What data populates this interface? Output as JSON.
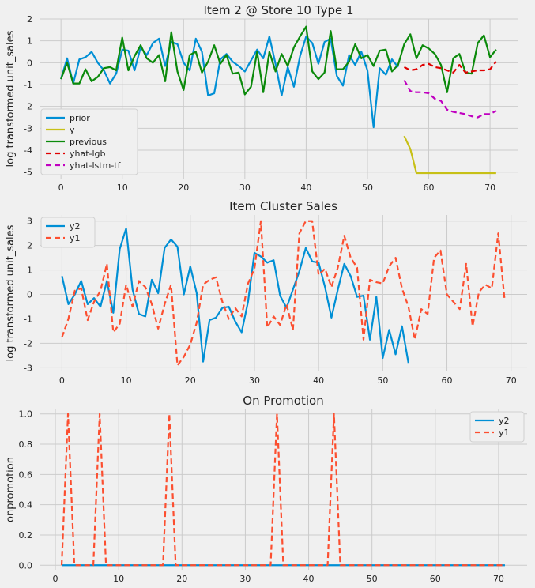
{
  "chart_data": [
    {
      "type": "line",
      "title": "Item 2 @ Store 10 Type 1",
      "xlabel": "",
      "ylabel": "log transformed unit_sales",
      "xlim": [
        -3.5,
        74.5
      ],
      "ylim": [
        -5.3,
        2.0
      ],
      "xticks": [
        0,
        10,
        20,
        30,
        40,
        50,
        60,
        70
      ],
      "yticks": [
        2,
        1,
        0,
        -1,
        -2,
        -3,
        -4,
        -5
      ],
      "grid": true,
      "legend_position": "lower-left",
      "series": [
        {
          "name": "prior",
          "color": "#008fd5",
          "dash": "solid",
          "x": [
            0,
            1,
            2,
            3,
            4,
            5,
            6,
            7,
            8,
            9,
            10,
            11,
            12,
            13,
            14,
            15,
            16,
            17,
            18,
            19,
            20,
            21,
            22,
            23,
            24,
            25,
            26,
            27,
            28,
            29,
            30,
            31,
            32,
            33,
            34,
            35,
            36,
            37,
            38,
            39,
            40,
            41,
            42,
            43,
            44,
            45,
            46,
            47,
            48,
            49,
            50,
            51,
            52,
            53,
            54,
            55
          ],
          "y": [
            -0.75,
            0.2,
            -0.95,
            0.15,
            0.25,
            0.5,
            0.0,
            -0.35,
            -0.95,
            -0.5,
            0.6,
            0.55,
            -0.35,
            0.7,
            0.35,
            0.9,
            1.1,
            -0.15,
            0.95,
            0.85,
            0.0,
            -0.35,
            1.1,
            0.5,
            -1.5,
            -1.4,
            0.15,
            0.4,
            0.05,
            -0.15,
            -0.4,
            0.1,
            0.6,
            0.2,
            1.2,
            -0.05,
            -1.5,
            -0.2,
            -1.1,
            0.3,
            1.2,
            0.9,
            -0.05,
            0.95,
            1.1,
            -0.6,
            -1.05,
            0.35,
            -0.1,
            0.5,
            -0.35,
            -2.95,
            -0.25,
            -0.55,
            0.15,
            -0.2
          ]
        },
        {
          "name": "y",
          "color": "#c7c017",
          "dash": "solid",
          "x": [
            56,
            57,
            58,
            59,
            60,
            61,
            62,
            63,
            64,
            65,
            66,
            67,
            68,
            69,
            70,
            71
          ],
          "y": [
            -3.35,
            -3.95,
            -5.05,
            -5.05,
            -5.05,
            -5.05,
            -5.05,
            -5.05,
            -5.05,
            -5.05,
            -5.05,
            -5.05,
            -5.05,
            -5.05,
            -5.05,
            -5.05
          ]
        },
        {
          "name": "previous",
          "color": "#0b8a0b",
          "dash": "solid",
          "x": [
            0,
            1,
            2,
            3,
            4,
            5,
            6,
            7,
            8,
            9,
            10,
            11,
            12,
            13,
            14,
            15,
            16,
            17,
            18,
            19,
            20,
            21,
            22,
            23,
            24,
            25,
            26,
            27,
            28,
            29,
            30,
            31,
            32,
            33,
            34,
            35,
            36,
            37,
            38,
            39,
            40,
            41,
            42,
            43,
            44,
            45,
            46,
            47,
            48,
            49,
            50,
            51,
            52,
            53,
            54,
            55,
            56,
            57,
            58,
            59,
            60,
            61,
            62,
            63,
            64,
            65,
            66,
            67,
            68,
            69,
            70,
            71
          ],
          "y": [
            -0.75,
            0.0,
            -0.95,
            -0.95,
            -0.3,
            -0.85,
            -0.65,
            -0.25,
            -0.2,
            -0.35,
            1.15,
            -0.35,
            0.3,
            0.8,
            0.2,
            0.0,
            0.35,
            -0.85,
            1.4,
            -0.4,
            -1.25,
            0.35,
            0.5,
            -0.45,
            0.05,
            0.8,
            -0.05,
            0.35,
            -0.5,
            -0.45,
            -1.45,
            -1.1,
            0.5,
            -1.35,
            0.5,
            -0.4,
            0.4,
            -0.15,
            0.7,
            1.2,
            1.65,
            -0.4,
            -0.75,
            -0.45,
            1.45,
            -0.3,
            -0.3,
            0.05,
            0.85,
            0.2,
            0.35,
            -0.15,
            0.55,
            0.6,
            -0.4,
            -0.1,
            0.85,
            1.3,
            0.2,
            0.8,
            0.65,
            0.4,
            -0.1,
            -1.35,
            0.2,
            0.4,
            -0.45,
            -0.5,
            0.9,
            1.25,
            0.25,
            0.6
          ]
        },
        {
          "name": "yhat-lgb",
          "color": "#e00000",
          "dash": "dashed",
          "x": [
            56,
            57,
            58,
            59,
            60,
            61,
            62,
            63,
            64,
            65,
            66,
            67,
            68,
            69,
            70,
            71
          ],
          "y": [
            -0.2,
            -0.35,
            -0.3,
            -0.1,
            -0.05,
            -0.2,
            -0.25,
            -0.35,
            -0.45,
            -0.1,
            -0.45,
            -0.4,
            -0.35,
            -0.35,
            -0.3,
            0.05
          ]
        },
        {
          "name": "yhat-lstm-tf",
          "color": "#c000c0",
          "dash": "dashed",
          "x": [
            56,
            57,
            58,
            59,
            60,
            61,
            62,
            63,
            64,
            65,
            66,
            67,
            68,
            69,
            70,
            71
          ],
          "y": [
            -0.8,
            -1.3,
            -1.35,
            -1.35,
            -1.4,
            -1.65,
            -1.75,
            -2.15,
            -2.25,
            -2.3,
            -2.35,
            -2.45,
            -2.5,
            -2.35,
            -2.35,
            -2.2
          ]
        }
      ]
    },
    {
      "type": "line",
      "title": "Item Cluster Sales",
      "xlabel": "",
      "ylabel": "log transformed unit_sales",
      "xlim": [
        -3.5,
        72.5
      ],
      "ylim": [
        -3.15,
        3.25
      ],
      "xticks": [
        0,
        10,
        20,
        30,
        40,
        50,
        60,
        70
      ],
      "yticks": [
        3,
        2,
        1,
        0,
        -1,
        -2,
        -3
      ],
      "grid": true,
      "legend_position": "upper-left",
      "series": [
        {
          "name": "y2",
          "color": "#008fd5",
          "dash": "solid",
          "x": [
            0,
            1,
            2,
            3,
            4,
            5,
            6,
            7,
            8,
            9,
            10,
            11,
            12,
            13,
            14,
            15,
            16,
            17,
            18,
            19,
            20,
            21,
            22,
            23,
            24,
            25,
            26,
            27,
            28,
            29,
            30,
            31,
            32,
            33,
            34,
            35,
            36,
            37,
            38,
            39,
            40,
            41,
            42,
            43,
            44,
            45,
            46,
            47,
            48,
            49,
            50,
            51,
            52,
            53,
            54
          ],
          "y": [
            0.75,
            -0.4,
            0.0,
            0.55,
            -0.4,
            -0.15,
            -0.5,
            0.55,
            -0.75,
            1.85,
            2.7,
            0.2,
            -0.8,
            -0.9,
            0.6,
            0.05,
            1.9,
            2.25,
            1.95,
            0.0,
            1.15,
            0.05,
            -2.75,
            -1.05,
            -0.95,
            -0.55,
            -0.5,
            -1.1,
            -1.55,
            -0.3,
            1.7,
            1.55,
            1.3,
            1.4,
            -0.05,
            -0.55,
            0.2,
            0.95,
            1.9,
            1.35,
            1.3,
            0.3,
            -0.95,
            0.2,
            1.25,
            0.75,
            -0.1,
            -0.05,
            -1.85,
            -0.1,
            -2.6,
            -1.45,
            -2.45,
            -1.3,
            -2.8
          ]
        },
        {
          "name": "y1",
          "color": "#fc4f30",
          "dash": "dashed",
          "x": [
            0,
            1,
            2,
            3,
            4,
            5,
            6,
            7,
            8,
            9,
            10,
            11,
            12,
            13,
            14,
            15,
            16,
            17,
            18,
            19,
            20,
            21,
            22,
            23,
            24,
            25,
            26,
            27,
            28,
            29,
            30,
            31,
            32,
            33,
            34,
            35,
            36,
            37,
            38,
            39,
            40,
            41,
            42,
            43,
            44,
            45,
            46,
            47,
            48,
            49,
            50,
            51,
            52,
            53,
            54,
            55,
            56,
            57,
            58,
            59,
            60,
            61,
            62,
            63,
            64,
            65,
            66,
            67,
            68,
            69
          ],
          "y": [
            -1.75,
            -1.0,
            0.15,
            0.25,
            -1.05,
            -0.3,
            0.15,
            1.25,
            -1.55,
            -1.2,
            0.4,
            -0.5,
            0.55,
            0.3,
            -0.4,
            -1.4,
            -0.4,
            0.4,
            -2.9,
            -2.55,
            -2.05,
            -1.15,
            0.4,
            0.6,
            0.7,
            -0.3,
            -1.0,
            -0.55,
            -0.9,
            0.45,
            1.05,
            3.0,
            -1.35,
            -0.9,
            -1.25,
            -0.4,
            -1.45,
            2.5,
            3.0,
            3.0,
            0.8,
            1.05,
            0.3,
            1.1,
            2.4,
            1.5,
            1.1,
            -1.85,
            0.6,
            0.5,
            0.45,
            1.15,
            1.5,
            0.25,
            -0.5,
            -1.85,
            -0.6,
            -0.8,
            1.5,
            1.8,
            0.0,
            -0.3,
            -0.6,
            1.25,
            -1.3,
            0.1,
            0.4,
            0.25,
            2.5,
            -0.25
          ]
        }
      ]
    },
    {
      "type": "line",
      "title": "On Promotion",
      "xlabel": "",
      "ylabel": "onpromotion",
      "xlim": [
        -2.5,
        74.5
      ],
      "ylim": [
        -0.03,
        1.03
      ],
      "xticks": [
        0,
        10,
        20,
        30,
        40,
        50,
        60,
        70
      ],
      "yticks": [
        1.0,
        0.8,
        0.6,
        0.4,
        0.2,
        0.0
      ],
      "ytick_labels": [
        "1.0",
        "0.8",
        "0.6",
        "0.4",
        "0.2",
        "0.0"
      ],
      "grid": true,
      "legend_position": "upper-right",
      "series": [
        {
          "name": "y2",
          "color": "#008fd5",
          "dash": "solid",
          "x": [
            1,
            71
          ],
          "y": [
            0,
            0
          ]
        },
        {
          "name": "y1",
          "color": "#fc4f30",
          "dash": "dashed",
          "x": [
            1,
            2,
            3,
            6,
            7,
            8,
            17,
            18,
            19,
            34,
            35,
            36,
            43,
            44,
            45,
            71
          ],
          "y": [
            0,
            1,
            0,
            0,
            1,
            0,
            0,
            1,
            0,
            0,
            1,
            0,
            0,
            1,
            0,
            0
          ]
        }
      ]
    }
  ]
}
